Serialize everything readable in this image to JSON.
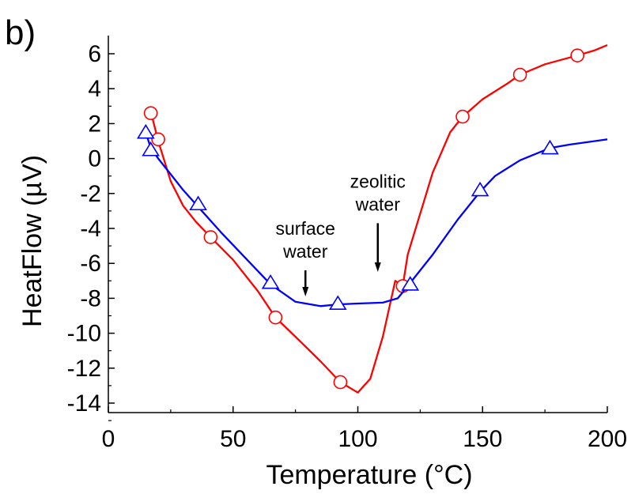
{
  "panel_label": "b)",
  "chart_data": {
    "type": "line",
    "title": "",
    "xlabel": "Temperature (°C)",
    "ylabel": "HeatFlow (µV)",
    "xlim": [
      0,
      200
    ],
    "ylim": [
      -15,
      6.5
    ],
    "xticks": [
      0,
      50,
      100,
      150,
      200
    ],
    "yticks": [
      6,
      4,
      2,
      0,
      -2,
      -4,
      -6,
      -8,
      -10,
      -12,
      -14
    ],
    "grid": false,
    "legend": "none",
    "series": [
      {
        "color": "#ff0000",
        "marker": "circle",
        "curve": [
          [
            17,
            2.7
          ],
          [
            20,
            1.0
          ],
          [
            25,
            -1.3
          ],
          [
            30,
            -2.7
          ],
          [
            35,
            -3.6
          ],
          [
            41,
            -4.5
          ],
          [
            50,
            -5.8
          ],
          [
            60,
            -7.6
          ],
          [
            67,
            -9.1
          ],
          [
            75,
            -10.2
          ],
          [
            85,
            -11.6
          ],
          [
            93,
            -12.8
          ],
          [
            100,
            -13.4
          ],
          [
            105,
            -12.6
          ],
          [
            110,
            -10.2
          ],
          [
            115,
            -7.0
          ],
          [
            118,
            -7.3
          ],
          [
            120,
            -5.5
          ],
          [
            130,
            -0.8
          ],
          [
            137,
            1.5
          ],
          [
            142,
            2.4
          ],
          [
            150,
            3.4
          ],
          [
            160,
            4.3
          ],
          [
            165,
            4.8
          ],
          [
            175,
            5.4
          ],
          [
            188,
            5.9
          ],
          [
            195,
            6.2
          ],
          [
            200,
            6.5
          ]
        ],
        "markers": [
          [
            17,
            2.6
          ],
          [
            20,
            1.1
          ],
          [
            41,
            -4.5
          ],
          [
            67,
            -9.1
          ],
          [
            93,
            -12.8
          ],
          [
            118,
            -7.3
          ],
          [
            142,
            2.4
          ],
          [
            165,
            4.8
          ],
          [
            188,
            5.9
          ]
        ]
      },
      {
        "color": "#0000ff",
        "marker": "triangle",
        "curve": [
          [
            15,
            1.5
          ],
          [
            17,
            0.6
          ],
          [
            20,
            0.0
          ],
          [
            25,
            -0.9
          ],
          [
            30,
            -1.8
          ],
          [
            35,
            -2.6
          ],
          [
            45,
            -4.2
          ],
          [
            55,
            -5.7
          ],
          [
            65,
            -7.2
          ],
          [
            75,
            -8.2
          ],
          [
            85,
            -8.45
          ],
          [
            92,
            -8.35
          ],
          [
            100,
            -8.3
          ],
          [
            110,
            -8.25
          ],
          [
            116,
            -8.0
          ],
          [
            120,
            -7.3
          ],
          [
            130,
            -5.5
          ],
          [
            140,
            -3.5
          ],
          [
            149,
            -1.9
          ],
          [
            155,
            -1.0
          ],
          [
            165,
            -0.1
          ],
          [
            177,
            0.6
          ],
          [
            185,
            0.8
          ],
          [
            200,
            1.1
          ]
        ],
        "markers": [
          [
            15,
            1.5
          ],
          [
            17,
            0.5
          ],
          [
            36,
            -2.6
          ],
          [
            65,
            -7.1
          ],
          [
            92,
            -8.3
          ],
          [
            121,
            -7.2
          ],
          [
            149,
            -1.8
          ],
          [
            177,
            0.6
          ]
        ]
      }
    ],
    "annotations": [
      {
        "text": [
          "surface",
          "water"
        ],
        "arrow_from": [
          79,
          -6.4
        ],
        "arrow_to": [
          79,
          -7.8
        ]
      },
      {
        "text": [
          "zeolitic",
          "water"
        ],
        "arrow_from": [
          108,
          -3.7
        ],
        "arrow_to": [
          108,
          -6.4
        ]
      }
    ]
  }
}
